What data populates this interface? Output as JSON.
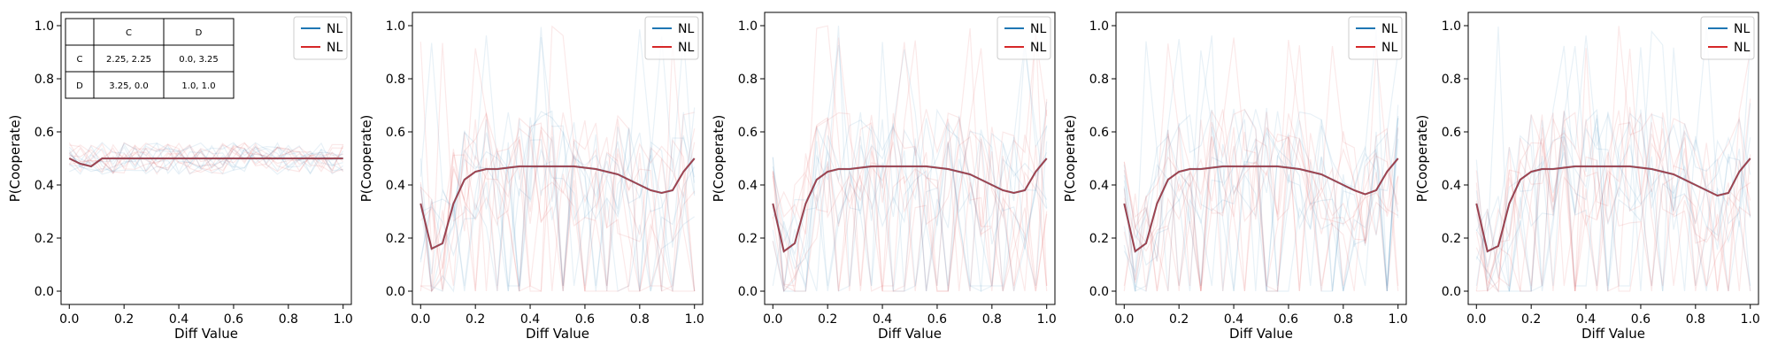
{
  "chart_data": [
    {
      "type": "line",
      "xlabel": "Diff Value",
      "ylabel": "P(Cooperate)",
      "xlim": [
        -0.03,
        1.03
      ],
      "ylim": [
        -0.05,
        1.05
      ],
      "xticks": [
        "0.0",
        "0.2",
        "0.4",
        "0.6",
        "0.8",
        "1.0"
      ],
      "yticks": [
        "0.0",
        "0.2",
        "0.4",
        "0.6",
        "0.8",
        "1.0"
      ],
      "legend": {
        "placement": "top-right",
        "entries": [
          {
            "label": "NL",
            "color": "#1f77b4"
          },
          {
            "label": "NL",
            "color": "#d62728"
          }
        ]
      },
      "payoff_table": {
        "col_headers": [
          "",
          "C",
          "D"
        ],
        "rows": [
          {
            "label": "C",
            "cells": [
              "2.25, 2.25",
              "0.0, 3.25"
            ]
          },
          {
            "label": "D",
            "cells": [
              "3.25, 0.0",
              "1.0, 1.0"
            ]
          }
        ]
      },
      "x": [
        0.0,
        0.04,
        0.08,
        0.12,
        0.16,
        0.2,
        0.24,
        0.28,
        0.32,
        0.36,
        0.4,
        0.44,
        0.48,
        0.52,
        0.56,
        0.6,
        0.64,
        0.68,
        0.72,
        0.76,
        0.8,
        0.84,
        0.88,
        0.92,
        0.96,
        1.0
      ],
      "series": [
        {
          "color": "#1f77b4",
          "role": "mean",
          "values": [
            0.5,
            0.48,
            0.47,
            0.5,
            0.5,
            0.5,
            0.5,
            0.5,
            0.5,
            0.5,
            0.5,
            0.5,
            0.5,
            0.5,
            0.5,
            0.5,
            0.5,
            0.5,
            0.5,
            0.5,
            0.5,
            0.5,
            0.5,
            0.5,
            0.5,
            0.5
          ]
        },
        {
          "color": "#d62728",
          "role": "mean",
          "values": [
            0.5,
            0.48,
            0.47,
            0.5,
            0.5,
            0.5,
            0.5,
            0.5,
            0.5,
            0.5,
            0.5,
            0.5,
            0.5,
            0.5,
            0.5,
            0.5,
            0.5,
            0.5,
            0.5,
            0.5,
            0.5,
            0.5,
            0.5,
            0.5,
            0.5,
            0.5
          ]
        }
      ]
    },
    {
      "type": "line",
      "xlabel": "Diff Value",
      "ylabel": "P(Cooperate)",
      "xlim": [
        -0.03,
        1.03
      ],
      "ylim": [
        -0.05,
        1.05
      ],
      "xticks": [
        "0.0",
        "0.2",
        "0.4",
        "0.6",
        "0.8",
        "1.0"
      ],
      "yticks": [
        "0.0",
        "0.2",
        "0.4",
        "0.6",
        "0.8",
        "1.0"
      ],
      "legend": {
        "placement": "top-right",
        "entries": [
          {
            "label": "NL",
            "color": "#1f77b4"
          },
          {
            "label": "NL",
            "color": "#d62728"
          }
        ]
      },
      "x": [
        0.0,
        0.04,
        0.08,
        0.12,
        0.16,
        0.2,
        0.24,
        0.28,
        0.32,
        0.36,
        0.4,
        0.44,
        0.48,
        0.52,
        0.56,
        0.6,
        0.64,
        0.68,
        0.72,
        0.76,
        0.8,
        0.84,
        0.88,
        0.92,
        0.96,
        1.0
      ],
      "series": [
        {
          "color": "#1f77b4",
          "role": "mean",
          "values": [
            0.33,
            0.16,
            0.18,
            0.33,
            0.42,
            0.45,
            0.46,
            0.46,
            0.465,
            0.47,
            0.47,
            0.47,
            0.47,
            0.47,
            0.47,
            0.465,
            0.46,
            0.45,
            0.44,
            0.42,
            0.4,
            0.38,
            0.37,
            0.38,
            0.45,
            0.5
          ]
        },
        {
          "color": "#d62728",
          "role": "mean",
          "values": [
            0.33,
            0.16,
            0.18,
            0.33,
            0.42,
            0.45,
            0.46,
            0.46,
            0.465,
            0.47,
            0.47,
            0.47,
            0.47,
            0.47,
            0.47,
            0.465,
            0.46,
            0.45,
            0.44,
            0.42,
            0.4,
            0.38,
            0.37,
            0.38,
            0.45,
            0.5
          ]
        }
      ]
    },
    {
      "type": "line",
      "xlabel": "Diff Value",
      "ylabel": "P(Cooperate)",
      "xlim": [
        -0.03,
        1.03
      ],
      "ylim": [
        -0.05,
        1.05
      ],
      "xticks": [
        "0.0",
        "0.2",
        "0.4",
        "0.6",
        "0.8",
        "1.0"
      ],
      "yticks": [
        "0.0",
        "0.2",
        "0.4",
        "0.6",
        "0.8",
        "1.0"
      ],
      "legend": {
        "placement": "top-right",
        "entries": [
          {
            "label": "NL",
            "color": "#1f77b4"
          },
          {
            "label": "NL",
            "color": "#d62728"
          }
        ]
      },
      "x": [
        0.0,
        0.04,
        0.08,
        0.12,
        0.16,
        0.2,
        0.24,
        0.28,
        0.32,
        0.36,
        0.4,
        0.44,
        0.48,
        0.52,
        0.56,
        0.6,
        0.64,
        0.68,
        0.72,
        0.76,
        0.8,
        0.84,
        0.88,
        0.92,
        0.96,
        1.0
      ],
      "series": [
        {
          "color": "#1f77b4",
          "role": "mean",
          "values": [
            0.33,
            0.15,
            0.18,
            0.33,
            0.42,
            0.45,
            0.46,
            0.46,
            0.465,
            0.47,
            0.47,
            0.47,
            0.47,
            0.47,
            0.47,
            0.465,
            0.46,
            0.45,
            0.44,
            0.42,
            0.4,
            0.38,
            0.37,
            0.38,
            0.45,
            0.5
          ]
        },
        {
          "color": "#d62728",
          "role": "mean",
          "values": [
            0.33,
            0.15,
            0.18,
            0.33,
            0.42,
            0.45,
            0.46,
            0.46,
            0.465,
            0.47,
            0.47,
            0.47,
            0.47,
            0.47,
            0.47,
            0.465,
            0.46,
            0.45,
            0.44,
            0.42,
            0.4,
            0.38,
            0.37,
            0.38,
            0.45,
            0.5
          ]
        }
      ]
    },
    {
      "type": "line",
      "xlabel": "Diff Value",
      "ylabel": "P(Cooperate)",
      "xlim": [
        -0.03,
        1.03
      ],
      "ylim": [
        -0.05,
        1.05
      ],
      "xticks": [
        "0.0",
        "0.2",
        "0.4",
        "0.6",
        "0.8",
        "1.0"
      ],
      "yticks": [
        "0.0",
        "0.2",
        "0.4",
        "0.6",
        "0.8",
        "1.0"
      ],
      "legend": {
        "placement": "top-right",
        "entries": [
          {
            "label": "NL",
            "color": "#1f77b4"
          },
          {
            "label": "NL",
            "color": "#d62728"
          }
        ]
      },
      "x": [
        0.0,
        0.04,
        0.08,
        0.12,
        0.16,
        0.2,
        0.24,
        0.28,
        0.32,
        0.36,
        0.4,
        0.44,
        0.48,
        0.52,
        0.56,
        0.6,
        0.64,
        0.68,
        0.72,
        0.76,
        0.8,
        0.84,
        0.88,
        0.92,
        0.96,
        1.0
      ],
      "series": [
        {
          "color": "#1f77b4",
          "role": "mean",
          "values": [
            0.33,
            0.15,
            0.18,
            0.33,
            0.42,
            0.45,
            0.46,
            0.46,
            0.465,
            0.47,
            0.47,
            0.47,
            0.47,
            0.47,
            0.47,
            0.465,
            0.46,
            0.45,
            0.44,
            0.42,
            0.4,
            0.38,
            0.365,
            0.38,
            0.45,
            0.5
          ]
        },
        {
          "color": "#d62728",
          "role": "mean",
          "values": [
            0.33,
            0.15,
            0.18,
            0.33,
            0.42,
            0.45,
            0.46,
            0.46,
            0.465,
            0.47,
            0.47,
            0.47,
            0.47,
            0.47,
            0.47,
            0.465,
            0.46,
            0.45,
            0.44,
            0.42,
            0.4,
            0.38,
            0.365,
            0.38,
            0.45,
            0.5
          ]
        }
      ]
    },
    {
      "type": "line",
      "xlabel": "Diff Value",
      "ylabel": "P(Cooperate)",
      "xlim": [
        -0.03,
        1.03
      ],
      "ylim": [
        -0.05,
        1.05
      ],
      "xticks": [
        "0.0",
        "0.2",
        "0.4",
        "0.6",
        "0.8",
        "1.0"
      ],
      "yticks": [
        "0.0",
        "0.2",
        "0.4",
        "0.6",
        "0.8",
        "1.0"
      ],
      "legend": {
        "placement": "top-right",
        "entries": [
          {
            "label": "NL",
            "color": "#1f77b4"
          },
          {
            "label": "NL",
            "color": "#d62728"
          }
        ]
      },
      "x": [
        0.0,
        0.04,
        0.08,
        0.12,
        0.16,
        0.2,
        0.24,
        0.28,
        0.32,
        0.36,
        0.4,
        0.44,
        0.48,
        0.52,
        0.56,
        0.6,
        0.64,
        0.68,
        0.72,
        0.76,
        0.8,
        0.84,
        0.88,
        0.92,
        0.96,
        1.0
      ],
      "series": [
        {
          "color": "#1f77b4",
          "role": "mean",
          "values": [
            0.33,
            0.15,
            0.17,
            0.33,
            0.42,
            0.45,
            0.46,
            0.46,
            0.465,
            0.47,
            0.47,
            0.47,
            0.47,
            0.47,
            0.47,
            0.465,
            0.46,
            0.45,
            0.44,
            0.42,
            0.4,
            0.38,
            0.36,
            0.37,
            0.45,
            0.5
          ]
        },
        {
          "color": "#d62728",
          "role": "mean",
          "values": [
            0.33,
            0.15,
            0.17,
            0.33,
            0.42,
            0.45,
            0.46,
            0.46,
            0.465,
            0.47,
            0.47,
            0.47,
            0.47,
            0.47,
            0.47,
            0.465,
            0.46,
            0.45,
            0.44,
            0.42,
            0.4,
            0.38,
            0.36,
            0.37,
            0.45,
            0.5
          ]
        }
      ]
    }
  ]
}
